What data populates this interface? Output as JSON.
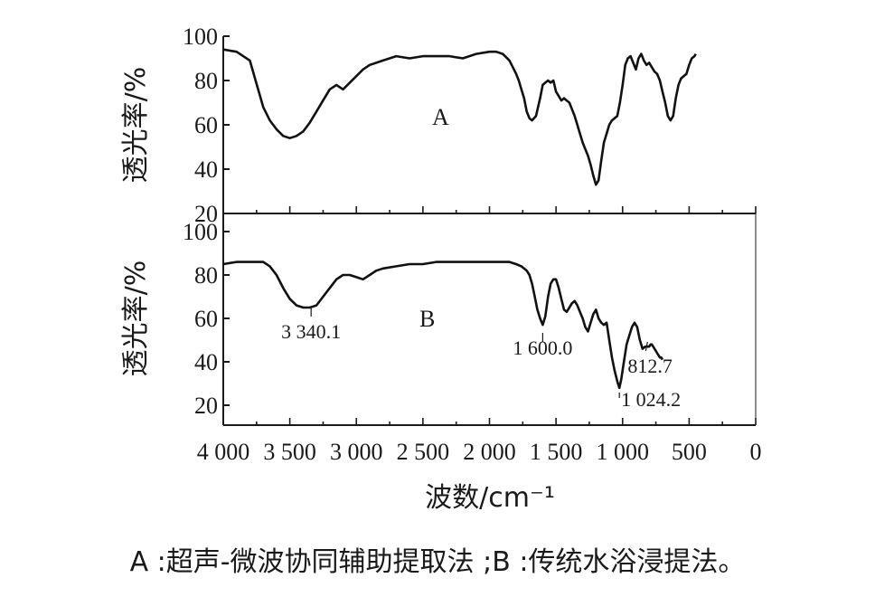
{
  "chart_data": [
    {
      "type": "line",
      "panel_label": "A",
      "ylabel": "透光率/%",
      "xlabel": "",
      "ylim": [
        20,
        100
      ],
      "xlim": [
        4000,
        0
      ],
      "yticks": [
        "100",
        "80",
        "60",
        "40",
        "20"
      ],
      "x_reversed": true,
      "grid": false,
      "series": [
        {
          "x": [
            4000,
            3900,
            3800,
            3700,
            3650,
            3600,
            3550,
            3500,
            3450,
            3400,
            3350,
            3300,
            3250,
            3200,
            3150,
            3100,
            3050,
            3000,
            2950,
            2900,
            2850,
            2800,
            2700,
            2600,
            2500,
            2400,
            2300,
            2200,
            2100,
            2000,
            1950,
            1900,
            1850,
            1800,
            1780,
            1760,
            1740,
            1720,
            1700,
            1680,
            1650,
            1620,
            1600,
            1580,
            1560,
            1540,
            1520,
            1500,
            1480,
            1460,
            1440,
            1420,
            1400,
            1380,
            1360,
            1340,
            1320,
            1300,
            1280,
            1260,
            1240,
            1220,
            1200,
            1180,
            1160,
            1140,
            1120,
            1100,
            1080,
            1060,
            1040,
            1020,
            1000,
            980,
            960,
            940,
            920,
            900,
            880,
            860,
            840,
            820,
            800,
            780,
            760,
            740,
            720,
            700,
            680,
            660,
            640,
            620,
            600,
            580,
            560,
            540,
            520,
            500,
            480,
            460,
            450
          ],
          "y": [
            94,
            93,
            89,
            68,
            62,
            58,
            55,
            54,
            55,
            57,
            61,
            66,
            71,
            76,
            78,
            76,
            79,
            82,
            85,
            87,
            88,
            89,
            91,
            90,
            91,
            91,
            91,
            90,
            92,
            93,
            93,
            92,
            89,
            83,
            80,
            76,
            72,
            66,
            63,
            62,
            64,
            72,
            78,
            79,
            80,
            79,
            80,
            75,
            73,
            71,
            72,
            71,
            70,
            67,
            64,
            60,
            56,
            52,
            49,
            46,
            42,
            37,
            33,
            35,
            44,
            52,
            56,
            60,
            62,
            63,
            64,
            70,
            78,
            87,
            90,
            91,
            88,
            85,
            90,
            92,
            89,
            87,
            88,
            86,
            84,
            83,
            80,
            75,
            70,
            64,
            62,
            64,
            72,
            78,
            81,
            82,
            83,
            87,
            90,
            91,
            92
          ]
        }
      ]
    },
    {
      "type": "line",
      "panel_label": "B",
      "ylabel": "透光率/%",
      "xlabel": "波数/cm⁻¹",
      "ylim": [
        20,
        100
      ],
      "xlim": [
        4000,
        0
      ],
      "yticks": [
        "100",
        "80",
        "60",
        "40",
        "20"
      ],
      "xticks": [
        "4 000",
        "3 500",
        "3 000",
        "2 500",
        "2 000",
        "1 500",
        "1 000",
        "500",
        "0"
      ],
      "x_reversed": true,
      "grid": false,
      "series": [
        {
          "x": [
            4000,
            3900,
            3800,
            3700,
            3650,
            3600,
            3550,
            3500,
            3450,
            3400,
            3350,
            3300,
            3250,
            3200,
            3150,
            3100,
            3050,
            3000,
            2950,
            2900,
            2850,
            2800,
            2700,
            2600,
            2500,
            2400,
            2300,
            2200,
            2100,
            2000,
            1900,
            1850,
            1800,
            1760,
            1720,
            1700,
            1680,
            1660,
            1640,
            1620,
            1600,
            1580,
            1560,
            1540,
            1520,
            1500,
            1480,
            1460,
            1440,
            1420,
            1400,
            1380,
            1360,
            1340,
            1320,
            1300,
            1280,
            1260,
            1240,
            1220,
            1200,
            1180,
            1160,
            1140,
            1120,
            1100,
            1080,
            1060,
            1040,
            1024,
            1010,
            990,
            970,
            950,
            930,
            910,
            890,
            870,
            850,
            830,
            812,
            800,
            790,
            780,
            770,
            760,
            750,
            740,
            730,
            720,
            710,
            700
          ],
          "y": [
            85,
            86,
            86,
            86,
            84,
            80,
            74,
            69,
            66,
            65,
            65,
            66,
            70,
            74,
            78,
            80,
            80,
            79,
            78,
            80,
            82,
            83,
            84,
            85,
            85,
            86,
            86,
            86,
            86,
            86,
            86,
            86,
            85,
            84,
            82,
            80,
            76,
            70,
            64,
            60,
            57,
            61,
            70,
            76,
            78,
            78,
            74,
            69,
            64,
            63,
            65,
            67,
            68,
            66,
            63,
            60,
            56,
            54,
            58,
            62,
            64,
            60,
            58,
            57,
            58,
            50,
            42,
            36,
            31,
            28,
            32,
            40,
            48,
            52,
            56,
            58,
            56,
            50,
            46,
            47,
            47,
            47,
            48,
            48,
            47,
            46,
            45,
            44,
            43,
            42,
            42,
            41
          ]
        }
      ],
      "annotations": [
        {
          "text": "3 340.1",
          "x": 3340.1
        },
        {
          "text": "1 600.0",
          "x": 1600.0
        },
        {
          "text": "812.7",
          "x": 812.7
        },
        {
          "text": "1 024.2",
          "x": 1024.2
        }
      ]
    }
  ],
  "caption": "A :超声-微波协同辅助提取法 ;B :传统水浴浸提法。"
}
